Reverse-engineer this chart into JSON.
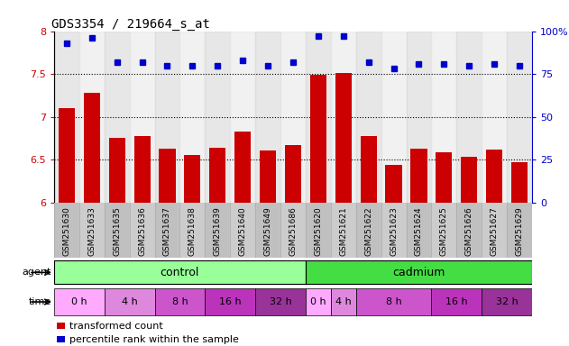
{
  "title": "GDS3354 / 219664_s_at",
  "samples": [
    "GSM251630",
    "GSM251633",
    "GSM251635",
    "GSM251636",
    "GSM251637",
    "GSM251638",
    "GSM251639",
    "GSM251640",
    "GSM251649",
    "GSM251686",
    "GSM251620",
    "GSM251621",
    "GSM251622",
    "GSM251623",
    "GSM251624",
    "GSM251625",
    "GSM251626",
    "GSM251627",
    "GSM251629"
  ],
  "bar_values": [
    7.1,
    7.28,
    6.75,
    6.77,
    6.63,
    6.55,
    6.64,
    6.83,
    6.61,
    6.67,
    7.49,
    7.51,
    6.78,
    6.44,
    6.63,
    6.59,
    6.53,
    6.62,
    6.47
  ],
  "dot_values": [
    93,
    96,
    82,
    82,
    80,
    80,
    80,
    83,
    80,
    82,
    97,
    97,
    82,
    78,
    81,
    81,
    80,
    81,
    80
  ],
  "bar_color": "#cc0000",
  "dot_color": "#0000cc",
  "ylim_left": [
    6.0,
    8.0
  ],
  "ylim_right": [
    0,
    100
  ],
  "yticks_left": [
    6.0,
    6.5,
    7.0,
    7.5,
    8.0
  ],
  "yticks_right": [
    0,
    25,
    50,
    75,
    100
  ],
  "ytick_labels_right": [
    "0",
    "25",
    "50",
    "75",
    "100%"
  ],
  "grid_values": [
    6.5,
    7.0,
    7.5
  ],
  "control_color": "#99ff99",
  "cadmium_color": "#44dd44",
  "time_segs": [
    [
      0,
      1,
      "0 h"
    ],
    [
      2,
      3,
      "4 h"
    ],
    [
      4,
      5,
      "8 h"
    ],
    [
      6,
      7,
      "16 h"
    ],
    [
      8,
      9,
      "32 h"
    ],
    [
      10,
      10,
      "0 h"
    ],
    [
      11,
      11,
      "4 h"
    ],
    [
      12,
      14,
      "8 h"
    ],
    [
      15,
      16,
      "16 h"
    ],
    [
      17,
      18,
      "32 h"
    ]
  ],
  "time_colors": [
    "#ffaaff",
    "#dd88dd",
    "#cc55cc",
    "#bb33bb",
    "#993399"
  ],
  "background_color": "#ffffff",
  "tick_bg_color": "#cccccc",
  "legend_items": [
    {
      "color": "#cc0000",
      "label": "transformed count"
    },
    {
      "color": "#0000cc",
      "label": "percentile rank within the sample"
    }
  ]
}
